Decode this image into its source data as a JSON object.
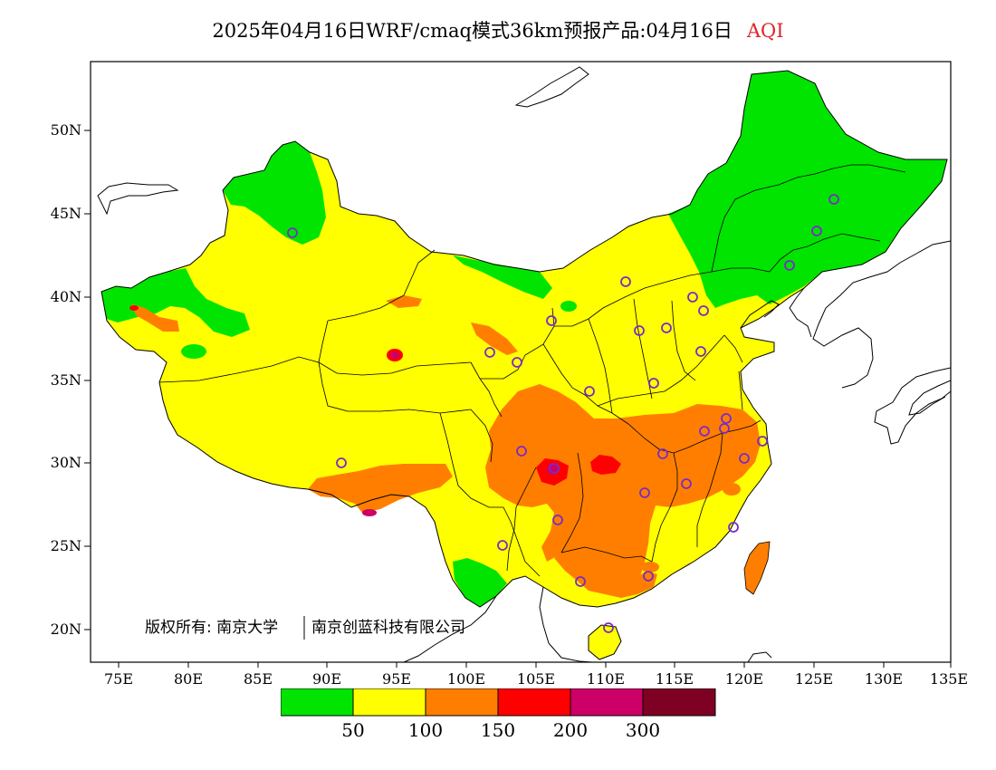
{
  "title": {
    "main": "2025年04月16日WRF/cmaq模式36km预报产品:04月16日",
    "variable": "AQI"
  },
  "map": {
    "lat_labels": [
      "50N",
      "45N",
      "40N",
      "35N",
      "30N",
      "25N",
      "20N"
    ],
    "lon_labels": [
      "75E",
      "80E",
      "85E",
      "90E",
      "95E",
      "100E",
      "105E",
      "110E",
      "115E",
      "120E",
      "125E",
      "130E",
      "135E"
    ],
    "copyright_left": "版权所有: 南京大学",
    "copyright_right": "南京创蓝科技有限公司",
    "colors": {
      "good": "#00e400",
      "moderate": "#ffff00",
      "usg": "#ff7e00",
      "unhealthy": "#ff0000",
      "very_unhealthy": "#cc0066",
      "hazardous": "#7e0023",
      "station_marker": "#7a2cc4"
    }
  },
  "legend": {
    "colors": [
      "#00e400",
      "#ffff00",
      "#ff7e00",
      "#ff0000",
      "#cc0066",
      "#7e0023"
    ],
    "labels": [
      "50",
      "100",
      "150",
      "200",
      "300"
    ]
  }
}
